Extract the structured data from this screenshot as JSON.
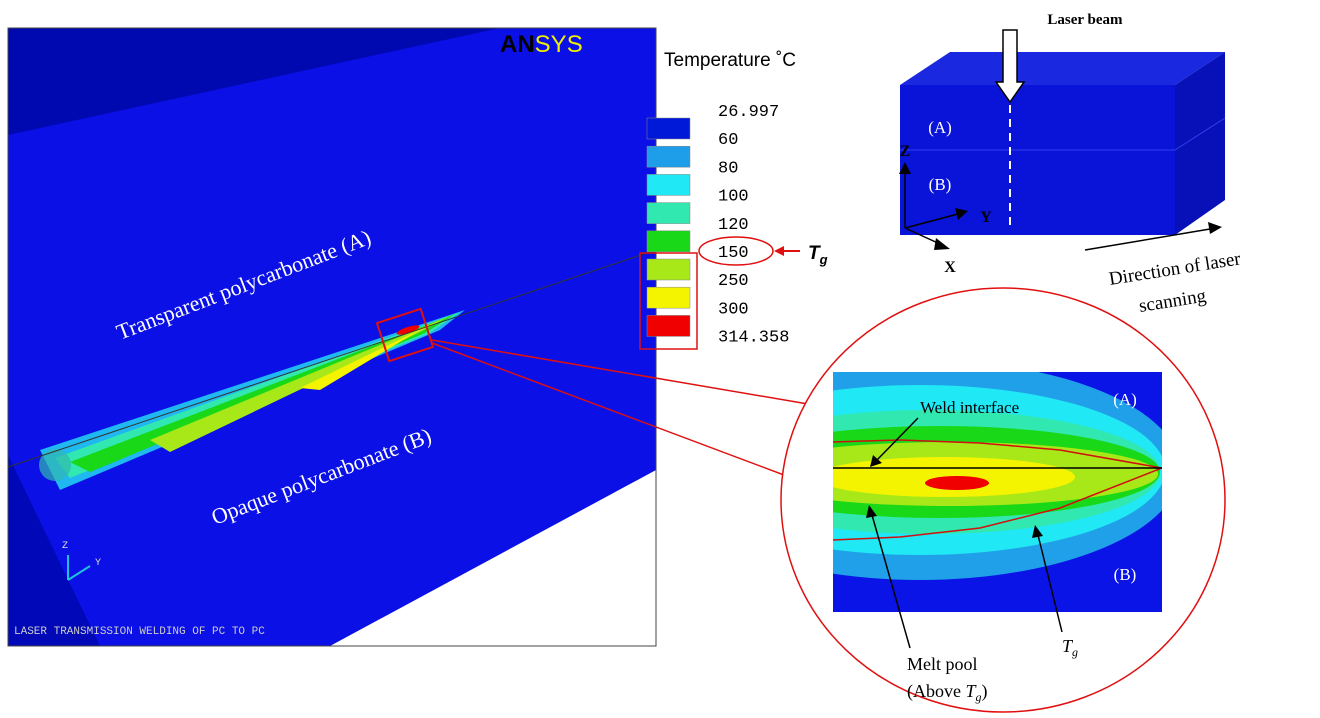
{
  "simulation": {
    "logo_a": "AN",
    "logo_b": "SYS",
    "label_a": "Transparent polycarbonate (A)",
    "label_b": "Opaque polycarbonate (B)",
    "triad_z": "Z",
    "triad_y": "Y",
    "footer": "LASER TRANSMISSION WELDING OF PC TO PC"
  },
  "legend": {
    "title": "Temperature ˚C",
    "levels": [
      "26.997",
      "60",
      "80",
      "100",
      "120",
      "150",
      "250",
      "300",
      "314.358"
    ],
    "colors": [
      "#0018d8",
      "#1e9ee8",
      "#20e8f4",
      "#30e8b0",
      "#18d818",
      "#a8e818",
      "#f4f400",
      "#f00000"
    ],
    "tg": {
      "symbol": "T",
      "subscript": "g"
    }
  },
  "schematic": {
    "beam": "Laser beam",
    "layer_a": "(A)",
    "layer_b": "(B)",
    "axis_z": "Z",
    "axis_y": "Y",
    "axis_x": "X",
    "direction_line1": "Direction of laser",
    "direction_line2": "scanning"
  },
  "zoom": {
    "weld_interface": "Weld interface",
    "layer_a": "(A)",
    "layer_b": "(B)",
    "melt_pool": "Melt pool",
    "above_open": "(Above ",
    "above_symbol": "T",
    "above_subscript": "g",
    "above_close": ")",
    "tg_symbol": "T",
    "tg_subscript": "g"
  }
}
